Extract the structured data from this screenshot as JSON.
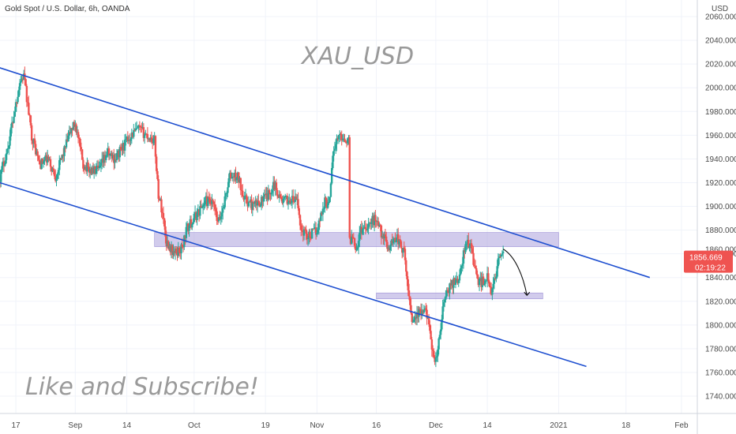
{
  "header": {
    "instrument": "Gold Spot / U.S. Dollar, 6h, OANDA",
    "currency": "USD"
  },
  "annotations": {
    "title_watermark": "XAU_USD",
    "footer_watermark": "Like and Subscribe!"
  },
  "price_badges": {
    "last_price": "1856.669",
    "countdown": "02:19:22",
    "hidden_label": "1860.000"
  },
  "colors": {
    "up": "#26a69a",
    "down": "#ef5350",
    "trendline": "#1e4fd0",
    "zone_fill": "#b3a8e0",
    "badge": "#ef5350",
    "grid": "#f0f3fa"
  },
  "chart_data": {
    "type": "candlestick",
    "interval": "6h",
    "ylim": [
      1725,
      2075
    ],
    "y_ticks": [
      1740,
      1760,
      1780,
      1800,
      1820,
      1840,
      1860,
      1880,
      1900,
      1920,
      1940,
      1960,
      1980,
      2000,
      2020,
      2040,
      2060
    ],
    "x_ticks": [
      {
        "label": "17",
        "date": "2020-08-17"
      },
      {
        "label": "Sep",
        "date": "2020-09-01"
      },
      {
        "label": "14",
        "date": "2020-09-14"
      },
      {
        "label": "Oct",
        "date": "2020-10-01"
      },
      {
        "label": "19",
        "date": "2020-10-19"
      },
      {
        "label": "Nov",
        "date": "2020-11-01"
      },
      {
        "label": "16",
        "date": "2020-11-16"
      },
      {
        "label": "Dec",
        "date": "2020-12-01"
      },
      {
        "label": "14",
        "date": "2020-12-14"
      },
      {
        "label": "2021",
        "date": "2021-01-01"
      },
      {
        "label": "18",
        "date": "2021-01-18"
      },
      {
        "label": "Feb",
        "date": "2021-02-01"
      }
    ],
    "price_path": [
      [
        "2020-08-13",
        1925
      ],
      [
        "2020-08-15",
        1950
      ],
      [
        "2020-08-18",
        2005
      ],
      [
        "2020-08-19",
        2010
      ],
      [
        "2020-08-21",
        1960
      ],
      [
        "2020-08-23",
        1935
      ],
      [
        "2020-08-25",
        1940
      ],
      [
        "2020-08-27",
        1925
      ],
      [
        "2020-08-29",
        1945
      ],
      [
        "2020-08-31",
        1965
      ],
      [
        "2020-09-01",
        1970
      ],
      [
        "2020-09-03",
        1935
      ],
      [
        "2020-09-05",
        1930
      ],
      [
        "2020-09-07",
        1930
      ],
      [
        "2020-09-09",
        1945
      ],
      [
        "2020-09-11",
        1940
      ],
      [
        "2020-09-13",
        1950
      ],
      [
        "2020-09-15",
        1960
      ],
      [
        "2020-09-17",
        1965
      ],
      [
        "2020-09-19",
        1960
      ],
      [
        "2020-09-21",
        1955
      ],
      [
        "2020-09-22",
        1910
      ],
      [
        "2020-09-23",
        1895
      ],
      [
        "2020-09-24",
        1870
      ],
      [
        "2020-09-26",
        1860
      ],
      [
        "2020-09-28",
        1865
      ],
      [
        "2020-09-29",
        1880
      ],
      [
        "2020-09-30",
        1885
      ],
      [
        "2020-10-02",
        1895
      ],
      [
        "2020-10-04",
        1905
      ],
      [
        "2020-10-06",
        1900
      ],
      [
        "2020-10-07",
        1885
      ],
      [
        "2020-10-08",
        1895
      ],
      [
        "2020-10-10",
        1925
      ],
      [
        "2020-10-12",
        1925
      ],
      [
        "2020-10-14",
        1905
      ],
      [
        "2020-10-16",
        1900
      ],
      [
        "2020-10-18",
        1905
      ],
      [
        "2020-10-20",
        1910
      ],
      [
        "2020-10-21",
        1920
      ],
      [
        "2020-10-23",
        1905
      ],
      [
        "2020-10-25",
        1905
      ],
      [
        "2020-10-27",
        1905
      ],
      [
        "2020-10-28",
        1880
      ],
      [
        "2020-10-30",
        1875
      ],
      [
        "2020-11-01",
        1880
      ],
      [
        "2020-11-03",
        1905
      ],
      [
        "2020-11-04",
        1900
      ],
      [
        "2020-11-05",
        1945
      ],
      [
        "2020-11-06",
        1955
      ],
      [
        "2020-11-07",
        1960
      ],
      [
        "2020-11-09",
        1955
      ],
      [
        "2020-11-09",
        1870
      ],
      [
        "2020-11-10",
        1875
      ],
      [
        "2020-11-11",
        1865
      ],
      [
        "2020-11-12",
        1880
      ],
      [
        "2020-11-14",
        1885
      ],
      [
        "2020-11-16",
        1890
      ],
      [
        "2020-11-17",
        1880
      ],
      [
        "2020-11-19",
        1865
      ],
      [
        "2020-11-21",
        1875
      ],
      [
        "2020-11-23",
        1860
      ],
      [
        "2020-11-24",
        1830
      ],
      [
        "2020-11-25",
        1805
      ],
      [
        "2020-11-27",
        1810
      ],
      [
        "2020-11-29",
        1810
      ],
      [
        "2020-11-30",
        1775
      ],
      [
        "2020-12-01",
        1770
      ],
      [
        "2020-12-02",
        1790
      ],
      [
        "2020-12-03",
        1820
      ],
      [
        "2020-12-05",
        1835
      ],
      [
        "2020-12-07",
        1840
      ],
      [
        "2020-12-08",
        1860
      ],
      [
        "2020-12-09",
        1870
      ],
      [
        "2020-12-10",
        1865
      ],
      [
        "2020-12-11",
        1845
      ],
      [
        "2020-12-12",
        1835
      ],
      [
        "2020-12-14",
        1840
      ],
      [
        "2020-12-15",
        1825
      ],
      [
        "2020-12-16",
        1840
      ],
      [
        "2020-12-17",
        1860
      ],
      [
        "2020-12-18",
        1858
      ]
    ],
    "trendlines": [
      {
        "from": [
          "2020-08-10",
          2020
        ],
        "to": [
          "2021-01-24",
          1840
        ]
      },
      {
        "from": [
          "2020-08-11",
          1922
        ],
        "to": [
          "2021-01-08",
          1765
        ]
      }
    ],
    "zones": [
      {
        "start": "2020-09-21",
        "end": "2021-01-01",
        "low": 1866,
        "high": 1878
      },
      {
        "start": "2020-11-16",
        "end": "2020-12-28",
        "low": 1822,
        "high": 1827
      }
    ],
    "projection": [
      [
        "2020-12-18",
        1864
      ],
      [
        "2020-12-21",
        1858
      ],
      [
        "2020-12-23",
        1842
      ],
      [
        "2020-12-24",
        1825
      ]
    ],
    "last_price": 1856.669
  }
}
